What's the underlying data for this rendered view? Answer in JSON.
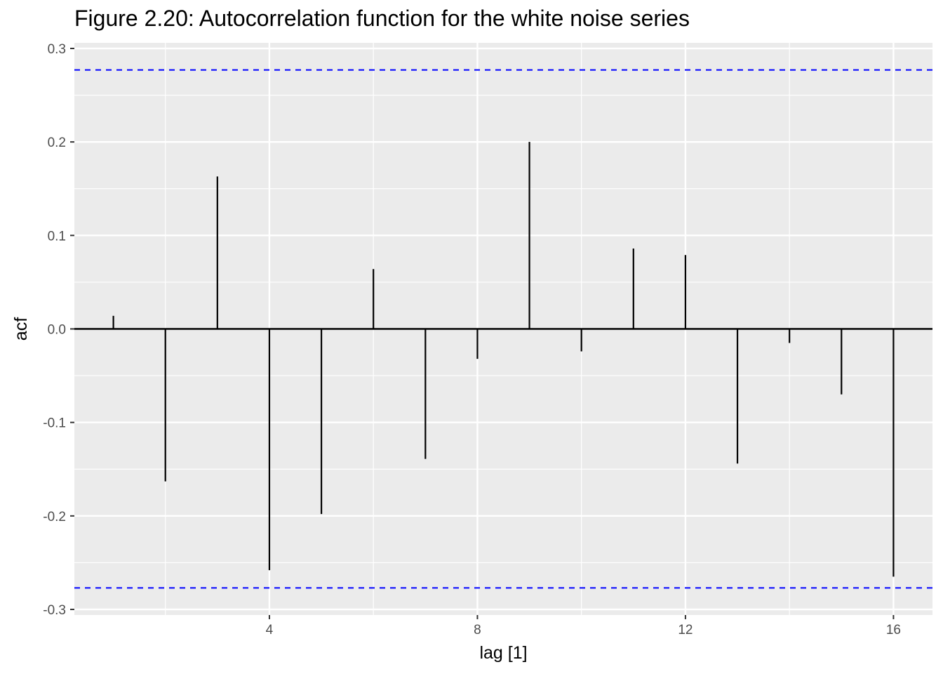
{
  "chart_data": {
    "type": "bar",
    "title": "Figure 2.20: Autocorrelation function for the white noise series",
    "xlabel": "lag [1]",
    "ylabel": "acf",
    "lags": [
      1,
      2,
      3,
      4,
      5,
      6,
      7,
      8,
      9,
      10,
      11,
      12,
      13,
      14,
      15,
      16
    ],
    "values": [
      0.014,
      -0.163,
      0.163,
      -0.258,
      -0.198,
      0.064,
      -0.139,
      -0.032,
      0.2,
      -0.024,
      0.086,
      0.079,
      -0.144,
      -0.015,
      -0.07,
      -0.265
    ],
    "xlim": [
      0.25,
      16.75
    ],
    "ylim": [
      -0.306,
      0.306
    ],
    "x_ticks": [
      4,
      8,
      12,
      16
    ],
    "y_ticks": [
      -0.3,
      -0.2,
      -0.1,
      0.0,
      0.1,
      0.2,
      0.3
    ],
    "y_tick_labels": [
      "-0.3",
      "-0.2",
      "-0.1",
      "0.0",
      "0.1",
      "0.2",
      "0.3"
    ],
    "confidence_bounds": [
      0.277,
      -0.277
    ],
    "colors": {
      "panel": "#ebebeb",
      "grid": "#ffffff",
      "bars": "#000000",
      "bounds": "#0000ff"
    },
    "grid": true
  }
}
